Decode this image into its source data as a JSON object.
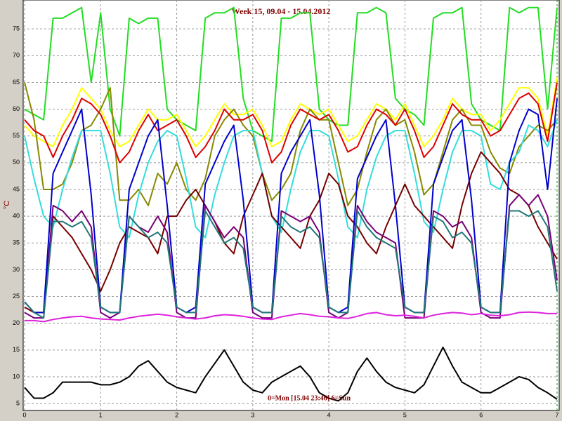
{
  "chart_data": {
    "type": "line",
    "title": "Week 15, 09.04 - 15.04.2012",
    "ylabel": "°C",
    "annotation": "0=Mon [15.04 23:46] 6=Sun",
    "xlim": [
      0,
      7
    ],
    "ylim": [
      3.7,
      80.4
    ],
    "xticks": [
      0,
      1,
      2,
      3,
      4,
      5,
      6,
      7
    ],
    "yticks": [
      5,
      10,
      15,
      20,
      25,
      30,
      35,
      40,
      45,
      50,
      55,
      60,
      65,
      70,
      75
    ],
    "grid": true,
    "x": [
      0,
      0.125,
      0.25,
      0.375,
      0.5,
      0.625,
      0.75,
      0.875,
      1,
      1.125,
      1.25,
      1.375,
      1.5,
      1.625,
      1.75,
      1.875,
      2,
      2.125,
      2.25,
      2.375,
      2.5,
      2.625,
      2.75,
      2.875,
      3,
      3.125,
      3.25,
      3.375,
      3.5,
      3.625,
      3.75,
      3.875,
      4,
      4.125,
      4.25,
      4.375,
      4.5,
      4.625,
      4.75,
      4.875,
      5,
      5.125,
      5.25,
      5.375,
      5.5,
      5.625,
      5.75,
      5.875,
      6,
      6.125,
      6.25,
      6.375,
      6.5,
      6.625,
      6.75,
      6.875,
      7
    ],
    "series": [
      {
        "color": "#22dd22",
        "values": [
          60,
          59,
          58,
          77,
          77,
          78,
          79,
          65,
          78,
          60,
          55,
          77,
          76,
          77,
          77,
          60,
          58,
          57,
          56,
          77,
          78,
          78,
          79,
          62,
          56,
          55,
          54,
          77,
          77,
          78,
          78,
          60,
          58,
          57,
          57,
          78,
          78,
          79,
          78,
          62,
          60,
          59,
          57,
          77,
          78,
          78,
          79,
          61,
          58,
          57,
          56,
          79,
          78,
          79,
          79,
          60,
          79
        ]
      },
      {
        "color": "#ffff00",
        "values": [
          57,
          55,
          54,
          53,
          57,
          60,
          64,
          62,
          60,
          56,
          53,
          54,
          57,
          60,
          58,
          58,
          59,
          56,
          53,
          55,
          58,
          61,
          59,
          59,
          60,
          57,
          53,
          54,
          58,
          61,
          60,
          59,
          60,
          57,
          54,
          55,
          58,
          61,
          60,
          58,
          61,
          57,
          53,
          55,
          58,
          62,
          60,
          59,
          59,
          56,
          58,
          61,
          64,
          64,
          62,
          55,
          66
        ]
      },
      {
        "color": "#888800",
        "values": [
          65,
          58,
          45,
          45,
          46,
          50,
          56,
          57,
          60,
          64,
          43,
          43,
          45,
          42,
          48,
          46,
          50,
          45,
          43,
          47,
          55,
          58,
          60,
          57,
          55,
          48,
          43,
          45,
          48,
          56,
          60,
          58,
          58,
          50,
          42,
          45,
          52,
          58,
          60,
          57,
          58,
          52,
          44,
          46,
          52,
          58,
          60,
          57,
          57,
          52,
          49,
          48,
          53,
          55,
          57,
          56,
          58
        ]
      },
      {
        "color": "#dd0000",
        "values": [
          58,
          56,
          55,
          51,
          55,
          58,
          62,
          61,
          59,
          55,
          50,
          52,
          56,
          59,
          56,
          57,
          58,
          55,
          51,
          53,
          56,
          60,
          58,
          58,
          59,
          56,
          50,
          52,
          57,
          60,
          59,
          58,
          59,
          56,
          52,
          53,
          57,
          60,
          59,
          57,
          60,
          56,
          51,
          53,
          57,
          61,
          59,
          58,
          58,
          55,
          56,
          59,
          62,
          63,
          61,
          54,
          65
        ]
      },
      {
        "color": "#33dddd",
        "values": [
          55,
          47,
          40,
          38,
          45,
          51,
          56,
          56,
          56,
          48,
          38,
          36,
          44,
          50,
          54,
          56,
          55,
          47,
          38,
          36,
          44,
          50,
          55,
          56,
          56,
          48,
          40,
          37,
          45,
          52,
          56,
          56,
          55,
          47,
          38,
          36,
          45,
          51,
          55,
          56,
          56,
          48,
          39,
          37,
          45,
          52,
          56,
          56,
          55,
          46,
          45,
          50,
          52,
          57,
          56,
          53,
          58
        ]
      },
      {
        "color": "#770000",
        "values": [
          23,
          22,
          22,
          40,
          38,
          36,
          33,
          30,
          26,
          30,
          35,
          38,
          37,
          36,
          33,
          40,
          40,
          43,
          45,
          42,
          39,
          35,
          33,
          40,
          44,
          48,
          40,
          38,
          36,
          34,
          40,
          43,
          48,
          46,
          40,
          38,
          35,
          33,
          38,
          42,
          46,
          42,
          40,
          38,
          36,
          34,
          42,
          48,
          52,
          50,
          48,
          45,
          44,
          42,
          38,
          35,
          32
        ]
      },
      {
        "color": "#770077",
        "values": [
          22,
          21,
          21,
          42,
          41,
          39,
          41,
          38,
          22,
          21,
          22,
          40,
          38,
          37,
          40,
          37,
          22,
          21,
          21,
          42,
          39,
          36,
          38,
          36,
          22,
          21,
          21,
          41,
          40,
          39,
          40,
          37,
          22,
          21,
          22,
          42,
          39,
          37,
          36,
          35,
          21,
          21,
          21,
          41,
          40,
          38,
          39,
          36,
          22,
          21,
          21,
          42,
          44,
          42,
          44,
          40,
          28
        ]
      },
      {
        "color": "#0000cc",
        "values": [
          24,
          22,
          22,
          48,
          52,
          56,
          60,
          44,
          23,
          22,
          22,
          45,
          50,
          55,
          58,
          42,
          23,
          22,
          23,
          46,
          50,
          54,
          57,
          43,
          23,
          22,
          22,
          48,
          52,
          55,
          58,
          44,
          23,
          22,
          23,
          47,
          51,
          55,
          58,
          42,
          23,
          22,
          22,
          46,
          51,
          56,
          58,
          43,
          23,
          22,
          22,
          50,
          56,
          60,
          59,
          45,
          62
        ]
      },
      {
        "color": "#227777",
        "values": [
          24,
          22,
          21,
          39,
          39,
          38,
          39,
          36,
          23,
          22,
          22,
          40,
          38,
          36,
          37,
          35,
          23,
          22,
          22,
          41,
          38,
          35,
          36,
          34,
          23,
          22,
          22,
          40,
          38,
          37,
          38,
          36,
          23,
          22,
          22,
          41,
          38,
          36,
          35,
          34,
          23,
          22,
          22,
          40,
          39,
          36,
          37,
          35,
          23,
          22,
          22,
          41,
          41,
          40,
          41,
          38,
          26
        ]
      },
      {
        "color": "#dd22dd",
        "values": [
          20.5,
          20.5,
          20.3,
          20.7,
          21,
          21.2,
          21.3,
          21,
          20.8,
          20.7,
          20.6,
          21,
          21.3,
          21.5,
          21.7,
          21.5,
          21.2,
          21,
          20.8,
          21,
          21.4,
          21.6,
          21.5,
          21.3,
          21,
          20.8,
          20.7,
          21.2,
          21.5,
          21.8,
          21.6,
          21.3,
          21.2,
          21,
          20.9,
          21.3,
          21.8,
          22,
          21.6,
          21.4,
          21.5,
          21.3,
          21,
          21.5,
          21.8,
          22,
          21.9,
          21.6,
          21.8,
          21.5,
          21.4,
          21.6,
          22,
          22.1,
          22,
          21.8,
          21.8
        ]
      },
      {
        "color": "#000000",
        "values": [
          8,
          6,
          6,
          7,
          9,
          9,
          9,
          9,
          8.5,
          8.5,
          9,
          10,
          12,
          13,
          11,
          9,
          8,
          7.5,
          7,
          10,
          12.5,
          15,
          12,
          9,
          7.5,
          7,
          9,
          10,
          11,
          12,
          10,
          7,
          6,
          5.5,
          7,
          11,
          13.5,
          11,
          9,
          8,
          7.5,
          7,
          8.5,
          12,
          15.5,
          12,
          9,
          8,
          7,
          7,
          8,
          9,
          10,
          9.5,
          8,
          7,
          5.8
        ]
      }
    ]
  }
}
